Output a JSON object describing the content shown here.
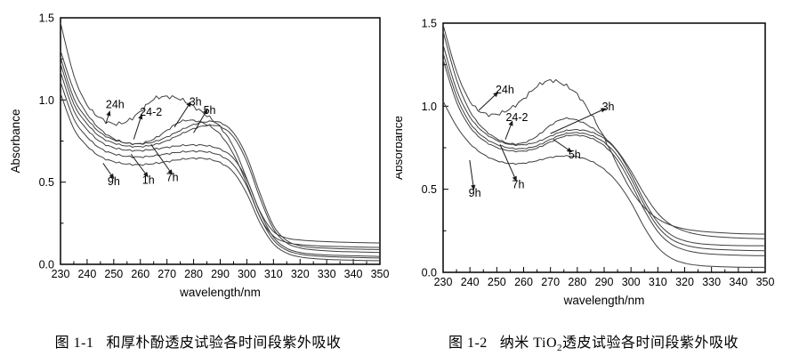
{
  "page": {
    "background": "#ffffff",
    "text_color": "#000000"
  },
  "chart_data": [
    {
      "type": "line",
      "title": "",
      "xlabel": "wavelength/nm",
      "ylabel": "Absorbance",
      "xlim": [
        230,
        350
      ],
      "ylim": [
        0.0,
        1.5
      ],
      "grid": false,
      "legend": "none",
      "frame": "full-box",
      "line_color": "#3f3f3f",
      "axis_color": "#000000",
      "xticks": [
        230,
        240,
        250,
        260,
        270,
        280,
        290,
        300,
        310,
        320,
        330,
        340,
        350
      ],
      "xtick_labels": [
        "230",
        "240",
        "250",
        "260",
        "270",
        "280",
        "290",
        "300",
        "310",
        "320",
        "330",
        "340",
        "350"
      ],
      "xticks_minor": [
        235,
        245,
        255,
        265,
        275,
        285,
        295,
        305,
        315,
        325,
        335,
        345
      ],
      "yticks": [
        0.0,
        0.5,
        1.0,
        1.5
      ],
      "ytick_labels": [
        "0.0",
        "0.5",
        "1.0",
        "1.5"
      ],
      "yticks_minor": [
        0.25,
        0.75,
        1.25
      ],
      "x": [
        230,
        235,
        240,
        245,
        250,
        255,
        260,
        265,
        270,
        275,
        280,
        285,
        290,
        295,
        300,
        305,
        310,
        315,
        320,
        325,
        330,
        335,
        340,
        345,
        350
      ],
      "series": [
        {
          "name": "24h",
          "wiggle": 0.008,
          "y": [
            1.47,
            1.15,
            0.97,
            0.89,
            0.855,
            0.87,
            0.93,
            1.005,
            1.02,
            1.005,
            0.96,
            0.905,
            0.835,
            0.715,
            0.52,
            0.32,
            0.2,
            0.16,
            0.148,
            0.142,
            0.138,
            0.135,
            0.133,
            0.131,
            0.13
          ]
        },
        {
          "name": "24-2",
          "wiggle": 0.004,
          "y": [
            1.3,
            1.06,
            0.915,
            0.82,
            0.765,
            0.737,
            0.735,
            0.762,
            0.815,
            0.868,
            0.875,
            0.85,
            0.79,
            0.67,
            0.49,
            0.285,
            0.172,
            0.133,
            0.12,
            0.114,
            0.11,
            0.108,
            0.106,
            0.104,
            0.103
          ]
        },
        {
          "name": "3h",
          "wiggle": 0.003,
          "y": [
            1.26,
            1.01,
            0.885,
            0.8,
            0.758,
            0.738,
            0.733,
            0.745,
            0.775,
            0.815,
            0.85,
            0.868,
            0.862,
            0.8,
            0.655,
            0.43,
            0.235,
            0.145,
            0.113,
            0.102,
            0.098,
            0.095,
            0.093,
            0.091,
            0.09
          ]
        },
        {
          "name": "5h",
          "wiggle": 0.003,
          "y": [
            1.22,
            0.975,
            0.855,
            0.775,
            0.738,
            0.72,
            0.716,
            0.727,
            0.752,
            0.79,
            0.825,
            0.845,
            0.838,
            0.775,
            0.625,
            0.4,
            0.215,
            0.13,
            0.1,
            0.088,
            0.082,
            0.078,
            0.076,
            0.074,
            0.072
          ]
        },
        {
          "name": "1h",
          "wiggle": 0.0035,
          "y": [
            1.17,
            0.935,
            0.82,
            0.745,
            0.71,
            0.695,
            0.692,
            0.7,
            0.712,
            0.722,
            0.726,
            0.722,
            0.7,
            0.645,
            0.515,
            0.315,
            0.165,
            0.098,
            0.072,
            0.062,
            0.057,
            0.054,
            0.052,
            0.05,
            0.048
          ]
        },
        {
          "name": "7h",
          "wiggle": 0.0035,
          "y": [
            1.11,
            0.885,
            0.775,
            0.705,
            0.672,
            0.657,
            0.653,
            0.66,
            0.672,
            0.683,
            0.688,
            0.684,
            0.662,
            0.605,
            0.475,
            0.285,
            0.148,
            0.086,
            0.062,
            0.052,
            0.047,
            0.044,
            0.042,
            0.04,
            0.038
          ]
        },
        {
          "name": "9h",
          "wiggle": 0.0035,
          "y": [
            1.04,
            0.825,
            0.72,
            0.655,
            0.625,
            0.61,
            0.606,
            0.613,
            0.625,
            0.638,
            0.645,
            0.642,
            0.618,
            0.56,
            0.43,
            0.25,
            0.125,
            0.068,
            0.045,
            0.035,
            0.03,
            0.027,
            0.025,
            0.023,
            0.022
          ]
        }
      ],
      "annotations": [
        {
          "label": "24h",
          "text": [
            250.5,
            0.975
          ],
          "from": [
            247.0,
            0.855
          ],
          "to": [
            248.0,
            0.905
          ]
        },
        {
          "label": "24-2",
          "text": [
            264.0,
            0.93
          ],
          "from": [
            257.5,
            0.76
          ],
          "to": [
            260.0,
            0.885
          ]
        },
        {
          "label": "3h",
          "text": [
            280.7,
            0.99
          ],
          "from": [
            272.8,
            0.835
          ],
          "to": [
            278.0,
            0.965
          ]
        },
        {
          "label": "5h",
          "text": [
            286.0,
            0.94
          ],
          "from": [
            280.0,
            0.8
          ],
          "to": [
            284.3,
            0.92
          ]
        },
        {
          "label": "9h",
          "text": [
            250.0,
            0.505
          ],
          "from": [
            246.0,
            0.615
          ],
          "to": [
            249.0,
            0.545
          ]
        },
        {
          "label": "1h",
          "text": [
            263.0,
            0.515
          ],
          "from": [
            256.5,
            0.67
          ],
          "to": [
            261.8,
            0.555
          ]
        },
        {
          "label": "7h",
          "text": [
            272.0,
            0.53
          ],
          "from": [
            264.0,
            0.73
          ],
          "to": [
            271.0,
            0.57
          ]
        }
      ],
      "caption": {
        "label": "图 1-1",
        "prefix": "和厚朴酚透皮试验各时间段紫外吸收",
        "sub": "",
        "suffix": ""
      }
    },
    {
      "type": "line",
      "title": "",
      "xlabel": "wavelength/nm",
      "ylabel": "Absorbance",
      "xlim": [
        230,
        350
      ],
      "ylim": [
        0.0,
        1.5
      ],
      "grid": false,
      "legend": "none",
      "frame": "full-box",
      "line_color": "#3f3f3f",
      "axis_color": "#000000",
      "xticks": [
        230,
        240,
        250,
        260,
        270,
        280,
        290,
        300,
        310,
        320,
        330,
        340,
        350
      ],
      "xtick_labels": [
        "230",
        "240",
        "250",
        "260",
        "270",
        "280",
        "290",
        "300",
        "310",
        "320",
        "330",
        "340",
        "350"
      ],
      "xticks_minor": [
        235,
        245,
        255,
        265,
        275,
        285,
        295,
        305,
        315,
        325,
        335,
        345
      ],
      "yticks": [
        0.0,
        0.5,
        1.0,
        1.5
      ],
      "ytick_labels": [
        "0.0",
        "0.5",
        "1.0",
        "1.5"
      ],
      "yticks_minor": [
        0.25,
        0.75,
        1.25
      ],
      "x": [
        230,
        235,
        240,
        245,
        250,
        255,
        260,
        265,
        270,
        275,
        280,
        285,
        290,
        295,
        300,
        305,
        310,
        315,
        320,
        325,
        330,
        335,
        340,
        345,
        350
      ],
      "series": [
        {
          "name": "24h",
          "wiggle": 0.008,
          "y": [
            1.49,
            1.21,
            1.03,
            0.958,
            0.952,
            0.985,
            1.045,
            1.12,
            1.155,
            1.13,
            1.07,
            0.955,
            0.81,
            0.645,
            0.495,
            0.39,
            0.322,
            0.283,
            0.261,
            0.249,
            0.242,
            0.237,
            0.233,
            0.231,
            0.23
          ]
        },
        {
          "name": "24-2",
          "wiggle": 0.003,
          "y": [
            1.45,
            1.16,
            0.97,
            0.865,
            0.805,
            0.775,
            0.78,
            0.82,
            0.885,
            0.925,
            0.915,
            0.875,
            0.815,
            0.73,
            0.61,
            0.47,
            0.355,
            0.285,
            0.248,
            0.228,
            0.217,
            0.211,
            0.207,
            0.204,
            0.202
          ]
        },
        {
          "name": "3h",
          "wiggle": 0.0025,
          "y": [
            1.37,
            1.1,
            0.935,
            0.845,
            0.795,
            0.77,
            0.768,
            0.785,
            0.82,
            0.85,
            0.858,
            0.845,
            0.805,
            0.725,
            0.59,
            0.43,
            0.3,
            0.225,
            0.19,
            0.174,
            0.167,
            0.163,
            0.161,
            0.16,
            0.16
          ]
        },
        {
          "name": "5h",
          "wiggle": 0.0025,
          "y": [
            1.32,
            1.06,
            0.9,
            0.815,
            0.77,
            0.748,
            0.745,
            0.762,
            0.8,
            0.832,
            0.84,
            0.825,
            0.782,
            0.7,
            0.565,
            0.405,
            0.275,
            0.2,
            0.165,
            0.148,
            0.14,
            0.136,
            0.133,
            0.131,
            0.13
          ]
        },
        {
          "name": "7h",
          "wiggle": 0.0025,
          "y": [
            1.28,
            1.025,
            0.875,
            0.795,
            0.752,
            0.732,
            0.73,
            0.748,
            0.785,
            0.818,
            0.825,
            0.808,
            0.762,
            0.675,
            0.535,
            0.375,
            0.245,
            0.17,
            0.135,
            0.118,
            0.11,
            0.106,
            0.103,
            0.101,
            0.1
          ]
        },
        {
          "name": "9h",
          "wiggle": 0.0025,
          "y": [
            1.03,
            0.88,
            0.775,
            0.71,
            0.672,
            0.655,
            0.657,
            0.672,
            0.692,
            0.7,
            0.695,
            0.67,
            0.62,
            0.54,
            0.42,
            0.27,
            0.15,
            0.085,
            0.055,
            0.042,
            0.036,
            0.033,
            0.031,
            0.03,
            0.03
          ]
        }
      ],
      "annotations": [
        {
          "label": "24h",
          "text": [
            253.0,
            1.1
          ],
          "from": [
            243.3,
            0.975
          ],
          "to": [
            249.2,
            1.065
          ]
        },
        {
          "label": "24-2",
          "text": [
            257.5,
            0.935
          ],
          "from": [
            253.2,
            0.8
          ],
          "to": [
            255.2,
            0.885
          ]
        },
        {
          "label": "3h",
          "text": [
            291.5,
            1.0
          ],
          "from": [
            270.0,
            0.835
          ],
          "to": [
            289.0,
            0.975
          ]
        },
        {
          "label": "5h",
          "text": [
            279.0,
            0.71
          ],
          "from": [
            271.1,
            0.8
          ],
          "to": [
            276.5,
            0.74
          ]
        },
        {
          "label": "7h",
          "text": [
            258.0,
            0.53
          ],
          "from": [
            251.2,
            0.77
          ],
          "to": [
            256.6,
            0.575
          ]
        },
        {
          "label": "9h",
          "text": [
            241.8,
            0.48
          ],
          "from": [
            239.9,
            0.675
          ],
          "to": [
            241.2,
            0.525
          ]
        }
      ],
      "caption": {
        "label": "图 1-2",
        "prefix": "纳米 TiO",
        "sub": "2",
        "suffix": "透皮试验各时间段紫外吸收"
      }
    }
  ]
}
